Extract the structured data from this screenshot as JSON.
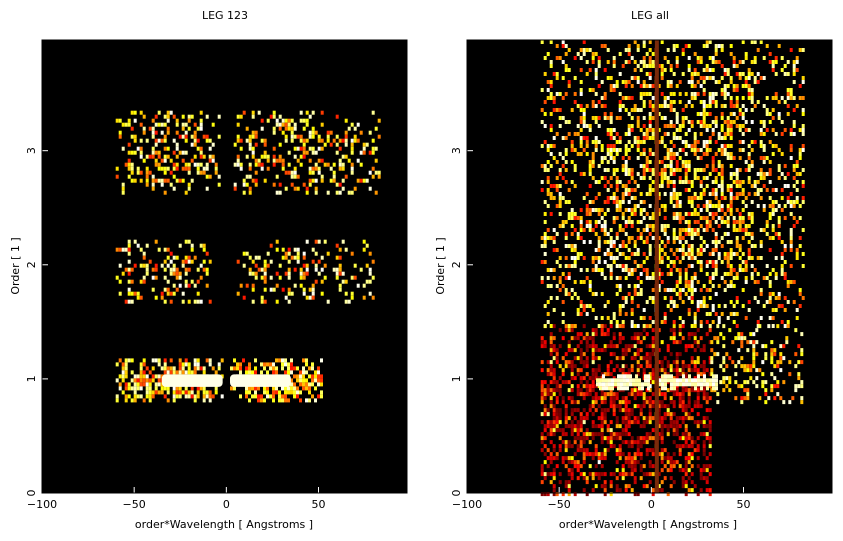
{
  "chart_data": [
    {
      "type": "heatmap",
      "title": "LEG 123",
      "xlabel": "order*Wavelength [ Angstroms ]",
      "ylabel": "Order [ 1 ]",
      "xlim": [
        -100,
        98
      ],
      "ylim": [
        0,
        3.97
      ],
      "xticks": [
        -100,
        -50,
        0,
        50
      ],
      "yticks": [
        0,
        1,
        2,
        3
      ],
      "colormap": "black-red-orange-yellow-white (hot)",
      "background_color": "#000000",
      "blobs": [
        {
          "x": [
            -60,
            -2
          ],
          "y": [
            0.82,
            1.18
          ],
          "density": 0.85,
          "core": [
            -35,
            -2
          ],
          "core_y": [
            0.93,
            1.04
          ]
        },
        {
          "x": [
            2,
            52
          ],
          "y": [
            0.82,
            1.18
          ],
          "density": 0.8,
          "core": [
            2,
            35
          ],
          "core_y": [
            0.93,
            1.04
          ]
        },
        {
          "x": [
            -60,
            -8
          ],
          "y": [
            1.68,
            2.22
          ],
          "density": 0.35
        },
        {
          "x": [
            4,
            80
          ],
          "y": [
            1.68,
            2.22
          ],
          "density": 0.3
        },
        {
          "x": [
            -60,
            -4
          ],
          "y": [
            2.62,
            3.35
          ],
          "density": 0.4
        },
        {
          "x": [
            4,
            83
          ],
          "y": [
            2.62,
            3.35
          ],
          "density": 0.35
        }
      ]
    },
    {
      "type": "heatmap",
      "title": "LEG all",
      "xlabel": "order*Wavelength [ Angstroms ]",
      "ylabel": "Order [ 1 ]",
      "xlim": [
        -100,
        98
      ],
      "ylim": [
        0,
        3.97
      ],
      "xticks": [
        -100,
        -50,
        0,
        50
      ],
      "yticks": [
        0,
        1,
        2,
        3
      ],
      "colormap": "black-red-orange-yellow-white (hot)",
      "background_color": "#000000",
      "blobs": [
        {
          "x": [
            -60,
            32
          ],
          "y": [
            0.0,
            1.48
          ],
          "density": 0.55,
          "dim": true
        },
        {
          "x": [
            -60,
            82
          ],
          "y": [
            1.48,
            3.97
          ],
          "density": 0.45
        },
        {
          "x": [
            32,
            82
          ],
          "y": [
            0.8,
            1.48
          ],
          "density": 0.35
        },
        {
          "x": [
            -30,
            -2
          ],
          "y": [
            0.93,
            1.04
          ],
          "density": 1.0,
          "bright": true
        },
        {
          "x": [
            2,
            35
          ],
          "y": [
            0.93,
            1.04
          ],
          "density": 1.0,
          "bright": true
        }
      ],
      "zero_stripe_x": 3
    }
  ]
}
